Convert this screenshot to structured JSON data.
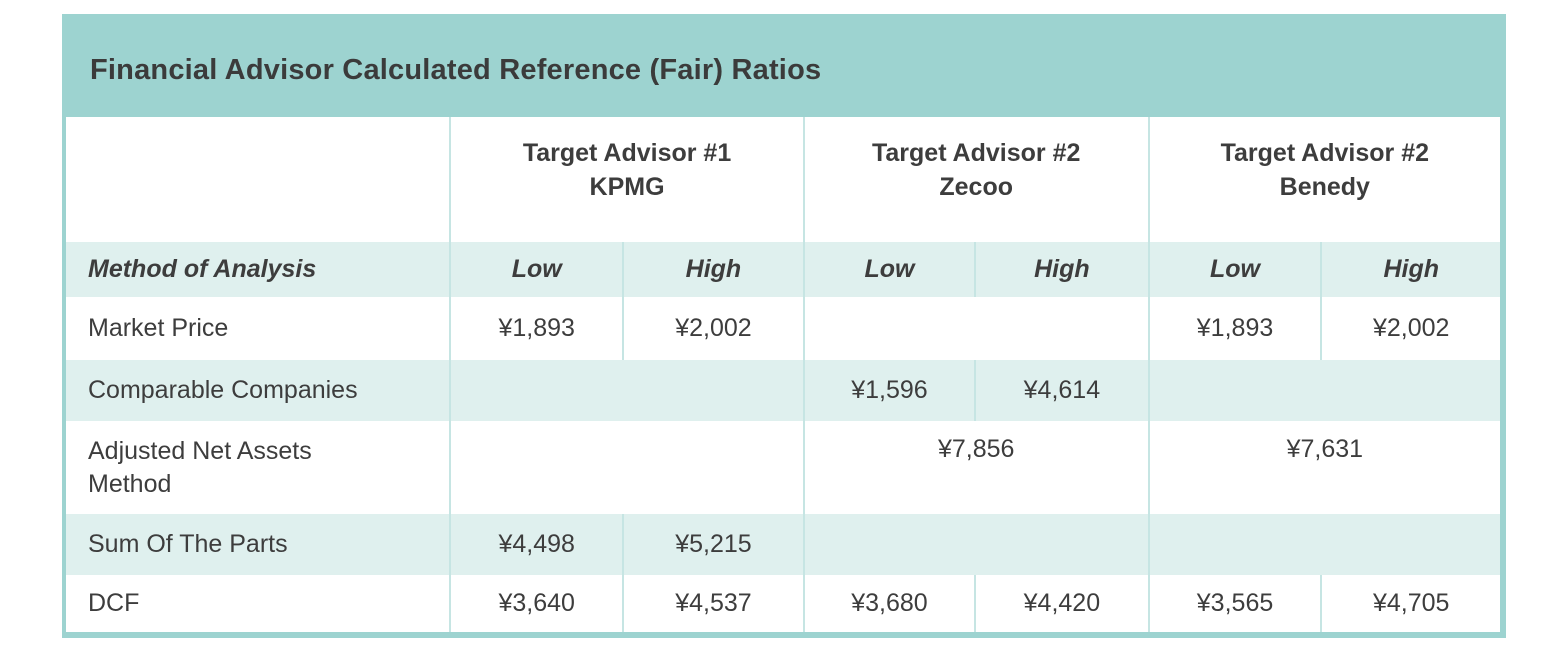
{
  "title": "Financial Advisor Calculated Reference (Fair) Ratios",
  "colors": {
    "header_teal": "#9dd3d0",
    "row_teal": "#dff0ee",
    "divider_teal": "#c6e5e3",
    "text_dark": "#3d3d3d"
  },
  "table": {
    "group_headers": [
      {
        "line1": "Target Advisor #1",
        "line2": "KPMG"
      },
      {
        "line1": "Target Advisor #2",
        "line2": "Zecoo"
      },
      {
        "line1": "Target Advisor #2",
        "line2": "Benedy"
      }
    ],
    "subheader": {
      "method": "Method of Analysis",
      "low": "Low",
      "high": "High"
    },
    "rows": {
      "market_price": {
        "label": "Market Price",
        "kpmg_low": "¥1,893",
        "kpmg_high": "¥2,002",
        "benedy_low": "¥1,893",
        "benedy_high": "¥2,002"
      },
      "comparable_companies": {
        "label": "Comparable Companies",
        "zecoo_low": "¥1,596",
        "zecoo_high": "¥4,614"
      },
      "adjusted_net_assets": {
        "label": "Adjusted Net Assets Method",
        "zecoo_value": "¥7,856",
        "benedy_value": "¥7,631"
      },
      "sum_of_the_parts": {
        "label": "Sum Of The Parts",
        "kpmg_low": "¥4,498",
        "kpmg_high": "¥5,215"
      },
      "dcf": {
        "label": "DCF",
        "kpmg_low": "¥3,640",
        "kpmg_high": "¥4,537",
        "zecoo_low": "¥3,680",
        "zecoo_high": "¥4,420",
        "benedy_low": "¥3,565",
        "benedy_high": "¥4,705"
      }
    }
  }
}
